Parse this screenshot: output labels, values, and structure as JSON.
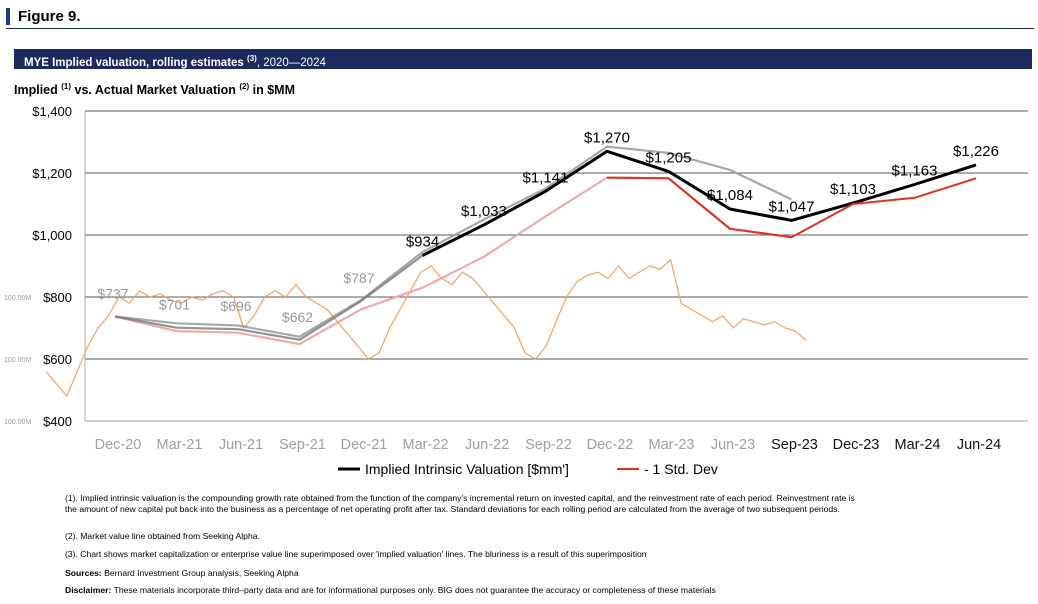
{
  "figure_label": "Figure 9.",
  "banner": {
    "title": "MYE Implied valuation, rolling estimates",
    "title_sup": "(3)",
    "years": ", 2020—2024"
  },
  "subtitle": {
    "part1": "Implied",
    "sup1": "(1)",
    "part2": " vs. Actual Market Valuation",
    "sup2": "(2)",
    "part3": " in $MM"
  },
  "footnotes": {
    "fn1": "(1). Implied intrinsic valuation is the compounding growth rate obtained from the function of the company's incremental return on invested capital, and the reinvestment rate of each period. Reinvestment rate is the amount of new capital put back into the business as a percentage of net operating profit after tax. Standard deviations for each rolling period are calculated from the average of two subsequent periods.",
    "fn2": "(2). Market value line obtained from Seeking Alpha.",
    "fn3": "(3). Chart shows market capitalization or enterprise value line superimposed over 'implied valuation' lines. The bluriness is a result of this superimposition",
    "sources_label": "Sources:",
    "sources_text": " Bernard Investment Group analysis, Seeking Alpha",
    "disclaimer_label": "Disclaimer:",
    "disclaimer_text": " These materials incorporate third–party data and are for informational purposes only. BIG does not guarantee the accuracy or completeness of these materials"
  },
  "chart_data": {
    "type": "line",
    "categories": [
      "Dec-20",
      "Mar-21",
      "Jun-21",
      "Sep-21",
      "Dec-21",
      "Mar-22",
      "Jun-22",
      "Sep-22",
      "Dec-22",
      "Mar-23",
      "Jun-23",
      "Sep-23",
      "Dec-23",
      "Mar-24",
      "Jun-24"
    ],
    "ylim": [
      400,
      1400
    ],
    "yticks": [
      400,
      600,
      800,
      1000,
      1200,
      1400
    ],
    "ytick_labels": [
      "$400",
      "$600",
      "$800",
      "$1,000",
      "$1,200",
      "$1,400"
    ],
    "grid": true,
    "legend_position": "bottom",
    "series": [
      {
        "name": "Implied Intrinsic Valuation [$mm']",
        "color": "#000000",
        "values": [
          null,
          null,
          null,
          null,
          null,
          934,
          1033,
          1141,
          1270,
          1205,
          1084,
          1047,
          1103,
          1163,
          1226
        ],
        "data_labels": [
          "",
          "",
          "",
          "",
          "",
          "$934",
          "$1,033",
          "$1,141",
          "$1,270",
          "$1,205",
          "$1,084",
          "$1,047",
          "$1,103",
          "$1,163",
          "$1,226"
        ]
      },
      {
        "name": "- 1 Std. Dev",
        "color": "#e0301e",
        "values": [
          null,
          null,
          null,
          null,
          null,
          null,
          null,
          null,
          1185,
          1183,
          1020,
          993,
          1100,
          1120,
          1183
        ]
      }
    ],
    "overlay": {
      "categories": [
        "Dec-20",
        "Mar-21",
        "Jun-21",
        "Sep-21",
        "Dec-21",
        "Mar-22",
        "Jun-22",
        "Sep-22",
        "Dec-22",
        "Mar-23",
        "Jun-23",
        "Sep-23"
      ],
      "implied_values": [
        737,
        701,
        696,
        662,
        787,
        934,
        1033,
        1141,
        1270,
        1205,
        1084,
        1047
      ],
      "implied_labels": [
        "$737",
        "$701",
        "$696",
        "$662",
        "$787",
        "",
        "",
        "",
        "",
        "",
        "",
        ""
      ],
      "upper_values": [
        737,
        715,
        708,
        672,
        790,
        945,
        1050,
        1150,
        1285,
        1265,
        1210,
        1115
      ],
      "lower_values": [
        737,
        690,
        685,
        648,
        760,
        830,
        930,
        1060,
        1185,
        1183,
        1020,
        993
      ],
      "left_axis_labels": [
        "100.00M",
        "100.00M",
        "100.00M"
      ],
      "market_value": [
        560,
        520,
        480,
        560,
        640,
        700,
        740,
        800,
        780,
        820,
        800,
        810,
        790,
        780,
        800,
        790,
        810,
        820,
        800,
        700,
        740,
        800,
        820,
        800,
        840,
        800,
        780,
        760,
        720,
        680,
        640,
        600,
        620,
        700,
        760,
        820,
        880,
        900,
        860,
        840,
        880,
        860,
        820,
        780,
        740,
        700,
        620,
        600,
        640,
        720,
        800,
        850,
        870,
        880,
        860,
        900,
        860,
        880,
        900,
        890,
        920,
        780,
        760,
        740,
        720,
        740,
        700,
        730,
        720,
        710,
        720,
        700,
        690,
        660
      ]
    }
  }
}
